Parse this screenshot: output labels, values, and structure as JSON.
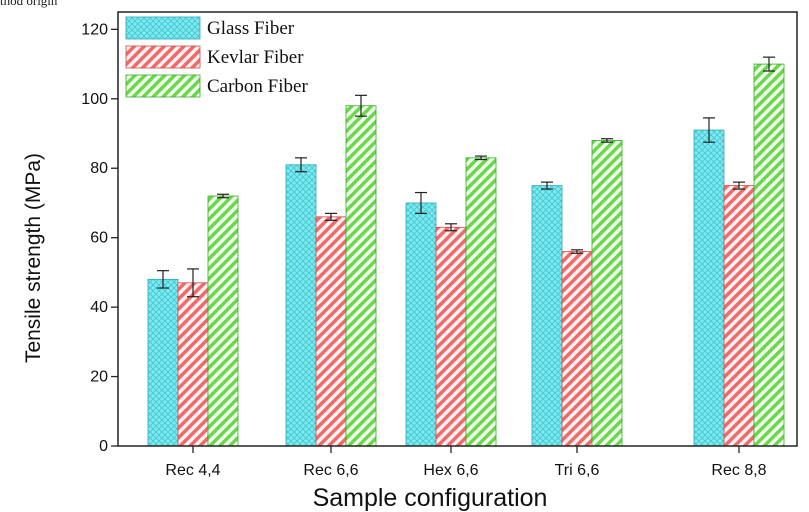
{
  "cropped_caption": "thod origin",
  "chart_data": {
    "type": "bar",
    "xlabel": "Sample configuration",
    "ylabel": "Tensile strength (MPa)",
    "ylim": [
      0,
      125
    ],
    "yticks": [
      0,
      20,
      40,
      60,
      80,
      100,
      120
    ],
    "categories": [
      "Rec 4,4",
      "Rec 6,6",
      "Hex 6,6",
      "Tri 6,6",
      "Rec 8,8"
    ],
    "series": [
      {
        "name": "Glass Fiber",
        "values": [
          48,
          81,
          70,
          75,
          91
        ],
        "errors": [
          2.5,
          2,
          3,
          1,
          3.5
        ],
        "color": "#7fe9ef",
        "pattern": "crosshatch"
      },
      {
        "name": "Kevlar Fiber",
        "values": [
          47,
          66,
          63,
          56,
          75
        ],
        "errors": [
          4,
          1,
          1,
          0.5,
          1
        ],
        "color": "#ff8f8f",
        "pattern": "diagonal"
      },
      {
        "name": "Carbon Fiber",
        "values": [
          72,
          98,
          83,
          88,
          110
        ],
        "errors": [
          0.5,
          3,
          0.5,
          0.5,
          2
        ],
        "color": "#80e060",
        "pattern": "diagonal"
      }
    ],
    "legend_position": "top-left",
    "grid": false
  }
}
